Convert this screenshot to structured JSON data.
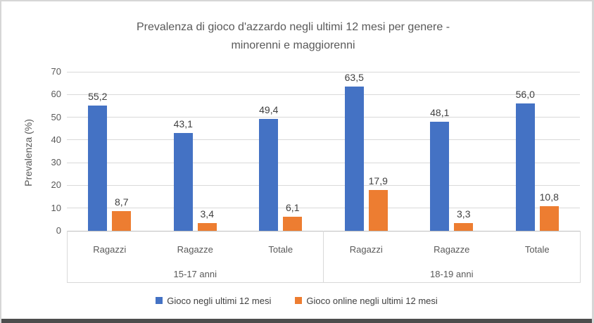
{
  "chart_data": {
    "type": "bar",
    "title": "Prevalenza di gioco d'azzardo negli ultimi 12 mesi per genere - minorenni e maggiorenni",
    "title_lines": [
      "Prevalenza di gioco d'azzardo negli ultimi 12 mesi per genere -",
      "minorenni e maggiorenni"
    ],
    "ylabel": "Prevalenza (%)",
    "ylim": [
      0,
      70
    ],
    "yticks": [
      "0",
      "10",
      "20",
      "30",
      "40",
      "50",
      "60",
      "70"
    ],
    "grid": true,
    "legend_position": "bottom",
    "groups": [
      {
        "label": "15-17 anni",
        "categories": [
          "Ragazzi",
          "Ragazze",
          "Totale"
        ]
      },
      {
        "label": "18-19 anni",
        "categories": [
          "Ragazzi",
          "Ragazze",
          "Totale"
        ]
      }
    ],
    "series": [
      {
        "name": "Gioco negli ultimi 12 mesi",
        "color": "#4472C4",
        "values": [
          55.2,
          43.1,
          49.4,
          63.5,
          48.1,
          56.0
        ],
        "labels": [
          "55,2",
          "43,1",
          "49,4",
          "63,5",
          "48,1",
          "56,0"
        ]
      },
      {
        "name": "Gioco online negli ultimi 12 mesi",
        "color": "#ED7D31",
        "values": [
          8.7,
          3.4,
          6.1,
          17.9,
          3.3,
          10.8
        ],
        "labels": [
          "8,7",
          "3,4",
          "6,1",
          "17,9",
          "3,3",
          "10,8"
        ]
      }
    ],
    "colors": {
      "gridline": "#D9D9D9",
      "axis_line": "#BFBFBF",
      "title_text": "#595959",
      "axis_text": "#595959",
      "data_label_text": "#404040",
      "legend_text": "#404040"
    }
  }
}
